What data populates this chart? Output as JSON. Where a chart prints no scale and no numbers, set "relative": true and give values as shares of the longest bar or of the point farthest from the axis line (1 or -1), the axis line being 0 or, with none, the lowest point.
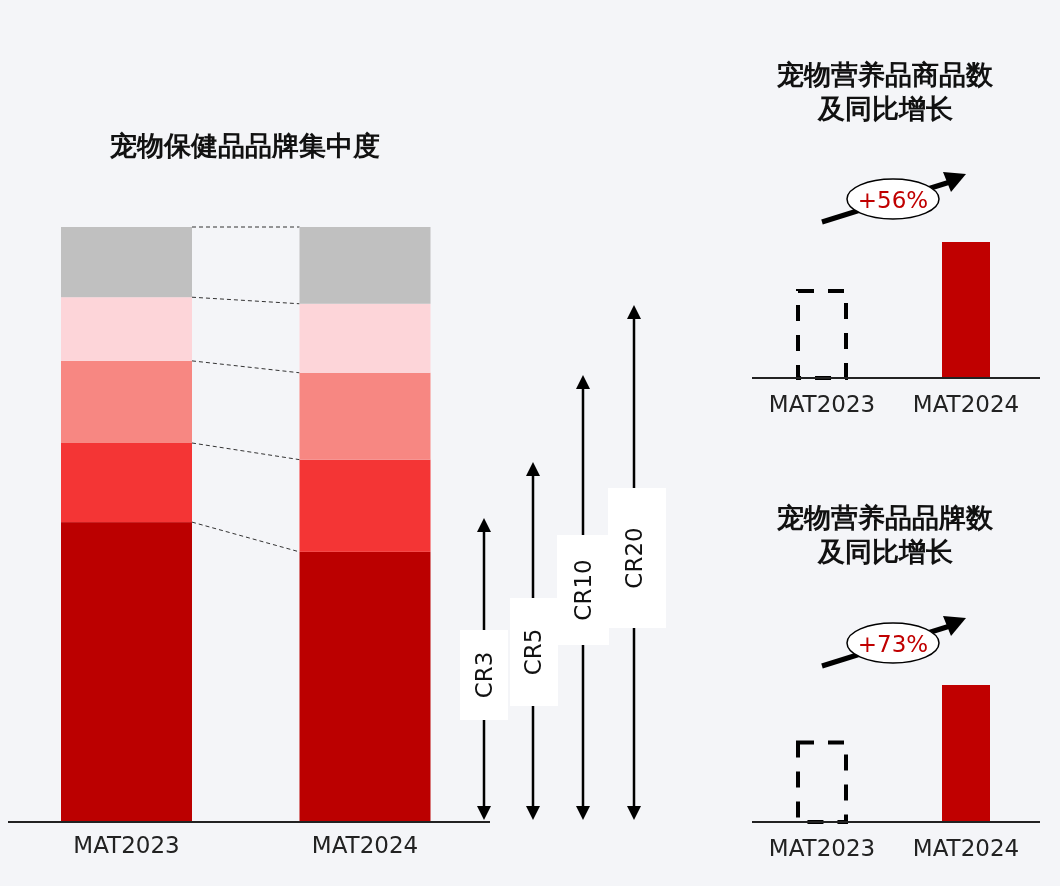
{
  "chart_data": [
    {
      "type": "bar",
      "title": "宠物保健品品牌集中度",
      "categories": [
        "MAT2023",
        "MAT2024"
      ],
      "relative": true,
      "stacked": true,
      "series": [
        {
          "color": "#bb0000",
          "values": [
            0.504,
            0.454
          ]
        },
        {
          "color": "#f43535",
          "values": [
            0.133,
            0.155
          ]
        },
        {
          "color": "#f78782",
          "values": [
            0.138,
            0.146
          ]
        },
        {
          "color": "#fdd5d9",
          "values": [
            0.107,
            0.116
          ]
        },
        {
          "color": "#c0c0c0",
          "values": [
            0.118,
            0.129
          ]
        }
      ],
      "annotations": [
        "CR3",
        "CR5",
        "CR10",
        "CR20"
      ]
    },
    {
      "type": "bar",
      "title": "宠物营养品商品数及同比增长",
      "categories": [
        "MAT2023",
        "MAT2024"
      ],
      "relative": true,
      "series": [
        {
          "color": "#000000",
          "line_style": "dashed",
          "values": [
            0.64,
            null
          ]
        },
        {
          "color": "#c00000",
          "values": [
            null,
            1
          ]
        }
      ],
      "annotations": [
        "+56%"
      ]
    },
    {
      "type": "bar",
      "title": "宠物营养品品牌数及同比增长",
      "categories": [
        "MAT2023",
        "MAT2024"
      ],
      "relative": true,
      "series": [
        {
          "color": "#000000",
          "line_style": "dashed",
          "values": [
            0.58,
            null
          ]
        },
        {
          "color": "#c00000",
          "values": [
            null,
            1
          ]
        }
      ],
      "annotations": [
        "+73%"
      ]
    }
  ]
}
